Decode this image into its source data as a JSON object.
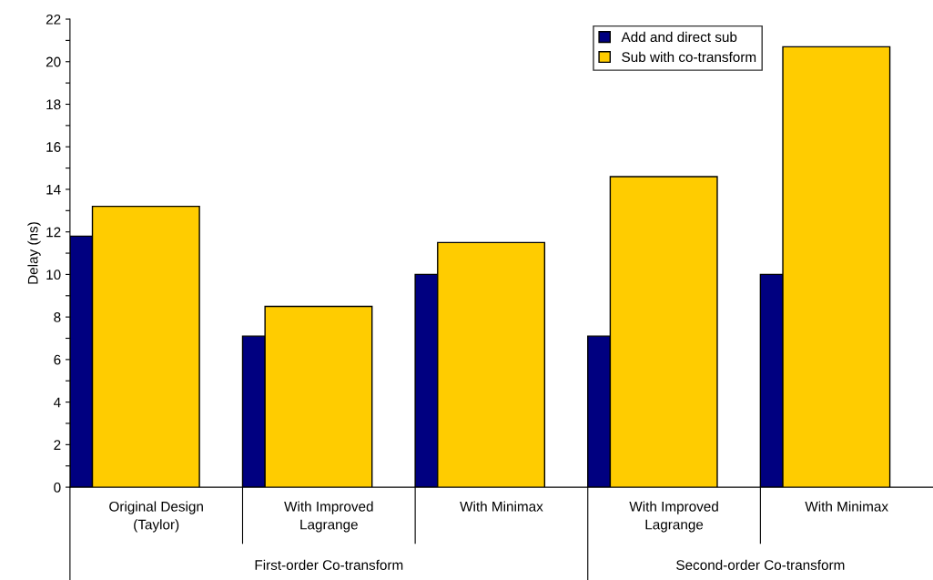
{
  "chart_data": {
    "type": "bar",
    "ylabel": "Delay (ns)",
    "categories": [
      "Original Design\n(Taylor)",
      "With Improved\nLagrange",
      "With Minimax",
      "With Improved\nLagrange",
      "With Minimax"
    ],
    "series": [
      {
        "name": "Add and direct sub",
        "color": "#000080",
        "values": [
          11.8,
          7.1,
          10.0,
          7.1,
          10.0
        ]
      },
      {
        "name": "Sub with co-transform",
        "color": "#ffcc00",
        "values": [
          13.2,
          8.5,
          11.5,
          14.6,
          20.7
        ]
      }
    ],
    "ylim": [
      0,
      22
    ],
    "yticks": [
      0,
      {
        "value": 1,
        "label": null
      },
      2,
      {
        "value": 3,
        "label": null
      },
      4,
      {
        "value": 5,
        "label": null
      },
      6,
      {
        "value": 7,
        "label": null
      },
      8,
      {
        "value": 9,
        "label": null
      },
      10,
      {
        "value": 11,
        "label": null
      },
      12,
      {
        "value": 13,
        "label": null
      },
      14,
      {
        "value": 15,
        "label": null
      },
      16,
      {
        "value": 17,
        "label": null
      },
      18,
      {
        "value": 19,
        "label": null
      },
      20,
      {
        "value": 21,
        "label": null
      },
      22
    ],
    "annotations": [
      "First-order Co-transform",
      "Second-order Co-transform"
    ],
    "legend": "top right",
    "grid": false
  }
}
